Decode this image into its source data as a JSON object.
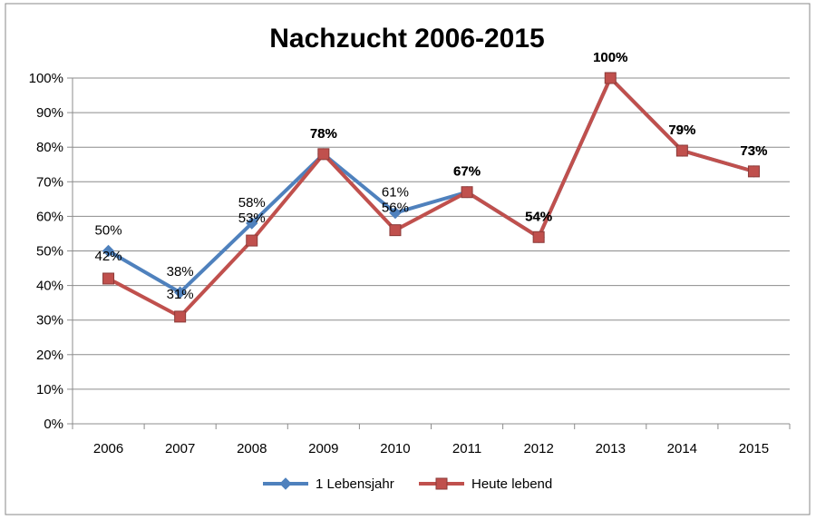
{
  "chart_data": {
    "type": "line",
    "title": "Nachzucht 2006-2015",
    "xlabel": "",
    "ylabel": "",
    "categories": [
      "2006",
      "2007",
      "2008",
      "2009",
      "2010",
      "2011",
      "2012",
      "2013",
      "2014",
      "2015"
    ],
    "y_ticks": [
      "0%",
      "10%",
      "20%",
      "30%",
      "40%",
      "50%",
      "60%",
      "70%",
      "80%",
      "90%",
      "100%"
    ],
    "ylim": [
      0,
      100
    ],
    "grid": true,
    "legend": "bottom",
    "series": [
      {
        "name": "1 Lebensjahr",
        "color": "#4F81BD",
        "marker": "diamond",
        "values": [
          50,
          38,
          58,
          78,
          61,
          67,
          54,
          100,
          79,
          73
        ],
        "labels": [
          "50%",
          "38%",
          "58%",
          "78%",
          "61%",
          "67%",
          "54%",
          "100%",
          "79%",
          "73%"
        ]
      },
      {
        "name": "Heute lebend",
        "color": "#C0504D",
        "marker": "square",
        "values": [
          42,
          31,
          53,
          78,
          56,
          67,
          54,
          100,
          79,
          73
        ],
        "labels": [
          "42%",
          "31%",
          "53%",
          "78%",
          "56%",
          "67%",
          "54%",
          "100%",
          "79%",
          "73%"
        ]
      }
    ]
  }
}
